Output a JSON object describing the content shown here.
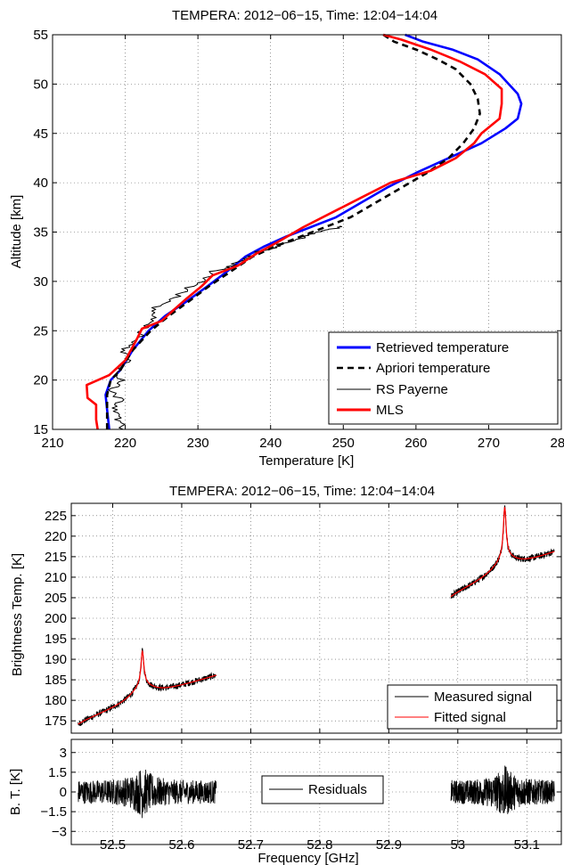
{
  "chart_data": [
    {
      "type": "line",
      "title": "TEMPERA: 2012−06−15, Time: 12:04−14:04",
      "xlabel": "Temperature [K]",
      "ylabel": "Altitude [km]",
      "xlim": [
        210,
        280
      ],
      "ylim": [
        15,
        55
      ],
      "xticks": [
        210,
        220,
        230,
        240,
        250,
        260,
        270,
        280
      ],
      "yticks": [
        15,
        20,
        25,
        30,
        35,
        40,
        45,
        50,
        55
      ],
      "grid": true,
      "legend_position": "bottom-right",
      "series": [
        {
          "name": "Retrieved temperature",
          "color": "#0000ff",
          "style": "solid",
          "points": [
            [
              217.8,
              15
            ],
            [
              217.5,
              17
            ],
            [
              217.3,
              18.5
            ],
            [
              218.0,
              20
            ],
            [
              219.3,
              21
            ],
            [
              221.0,
              23
            ],
            [
              223.2,
              25
            ],
            [
              225.5,
              26.5
            ],
            [
              228.5,
              28
            ],
            [
              231.3,
              29.5
            ],
            [
              234.0,
              31
            ],
            [
              236.5,
              32.5
            ],
            [
              239.0,
              33.5
            ],
            [
              242.0,
              34.5
            ],
            [
              245.5,
              35.5
            ],
            [
              249.0,
              36.5
            ],
            [
              252.5,
              38
            ],
            [
              256.0,
              39.5
            ],
            [
              260.0,
              41
            ],
            [
              264.5,
              42.5
            ],
            [
              269.0,
              44
            ],
            [
              272.3,
              45.5
            ],
            [
              274.0,
              46.5
            ],
            [
              274.5,
              48
            ],
            [
              274.0,
              49
            ],
            [
              271.5,
              51
            ],
            [
              268.5,
              52.5
            ],
            [
              265.0,
              53.5
            ],
            [
              261.0,
              54.3
            ],
            [
              258.5,
              55
            ]
          ]
        },
        {
          "name": "Apriori temperature",
          "color": "#000000",
          "style": "dashed",
          "points": [
            [
              217.5,
              15
            ],
            [
              217.5,
              17
            ],
            [
              217.5,
              18.5
            ],
            [
              218.0,
              20
            ],
            [
              219.3,
              21
            ],
            [
              221.0,
              23
            ],
            [
              223.5,
              25
            ],
            [
              226.0,
              26.5
            ],
            [
              228.8,
              28
            ],
            [
              231.5,
              29.5
            ],
            [
              234.5,
              31
            ],
            [
              237.5,
              32.5
            ],
            [
              240.5,
              33.5
            ],
            [
              244.0,
              34.5
            ],
            [
              247.5,
              35.5
            ],
            [
              251.0,
              36.5
            ],
            [
              254.5,
              38
            ],
            [
              258.0,
              39.5
            ],
            [
              261.5,
              41
            ],
            [
              264.5,
              42.5
            ],
            [
              266.5,
              44
            ],
            [
              268.0,
              45.5
            ],
            [
              268.8,
              47
            ],
            [
              268.5,
              48.5
            ],
            [
              267.5,
              50
            ],
            [
              265.5,
              51.5
            ],
            [
              263.0,
              52.5
            ],
            [
              260.0,
              53.5
            ],
            [
              257.0,
              54.3
            ],
            [
              255.5,
              55
            ]
          ]
        },
        {
          "name": "RS Payerne",
          "color": "#000000",
          "style": "solid-noisy",
          "points": [
            [
              219.5,
              15
            ],
            [
              219.0,
              16
            ],
            [
              218.5,
              17
            ],
            [
              219.3,
              18
            ],
            [
              218.0,
              19
            ],
            [
              219.5,
              20
            ],
            [
              218.8,
              21
            ],
            [
              220.3,
              22
            ],
            [
              219.8,
              23
            ],
            [
              221.5,
              24
            ],
            [
              222.5,
              25
            ],
            [
              224.0,
              26
            ],
            [
              223.5,
              27
            ],
            [
              226.0,
              28
            ],
            [
              228.0,
              29
            ],
            [
              230.5,
              30
            ],
            [
              232.0,
              31
            ],
            [
              234.5,
              31.5
            ],
            [
              236.5,
              32.3
            ],
            [
              238.5,
              33
            ],
            [
              240.5,
              33.5
            ],
            [
              242.5,
              34
            ],
            [
              244.5,
              34.5
            ],
            [
              246.5,
              35
            ],
            [
              248.5,
              35.3
            ],
            [
              249.5,
              35.6
            ]
          ]
        },
        {
          "name": "MLS",
          "color": "#ff0000",
          "style": "solid",
          "points": [
            [
              216.2,
              15
            ],
            [
              216.0,
              16
            ],
            [
              216.0,
              17.5
            ],
            [
              214.8,
              18.2
            ],
            [
              214.7,
              19.5
            ],
            [
              217.8,
              20.5
            ],
            [
              220.0,
              22
            ],
            [
              221.5,
              24
            ],
            [
              222.3,
              25.2
            ],
            [
              225.0,
              26
            ],
            [
              226.5,
              27
            ],
            [
              228.5,
              28.3
            ],
            [
              230.5,
              29.5
            ],
            [
              232.0,
              30.6
            ],
            [
              235.5,
              31.6
            ],
            [
              238.0,
              32.8
            ],
            [
              241.0,
              34
            ],
            [
              244.5,
              35.5
            ],
            [
              248.5,
              37
            ],
            [
              252.5,
              38.5
            ],
            [
              256.5,
              40
            ],
            [
              262.0,
              41.2
            ],
            [
              265.5,
              42.5
            ],
            [
              268.0,
              44
            ],
            [
              269.0,
              45
            ],
            [
              271.5,
              46.5
            ],
            [
              271.8,
              48
            ],
            [
              271.8,
              49.5
            ],
            [
              269.5,
              51
            ],
            [
              266.0,
              52.3
            ],
            [
              262.0,
              53.5
            ],
            [
              258.0,
              54.5
            ],
            [
              255.5,
              55
            ]
          ]
        }
      ]
    },
    {
      "type": "line",
      "title": "TEMPERA: 2012−06−15, Time: 12:04−14:04",
      "xlabel": "",
      "ylabel": "Brightness Temp. [K]",
      "xlim": [
        52.44,
        53.15
      ],
      "ylim": [
        172,
        228
      ],
      "yticks": [
        175,
        180,
        185,
        190,
        195,
        200,
        205,
        210,
        215,
        220,
        225
      ],
      "grid": true,
      "legend_position": "bottom-right",
      "segments": [
        {
          "x0": 52.45,
          "x1": 52.65,
          "base": [
            174,
            186
          ],
          "peak_x": 52.543,
          "peak": 192
        },
        {
          "x0": 52.99,
          "x1": 53.14,
          "base": [
            205,
            216
          ],
          "peak_x": 53.068,
          "peak": 227
        }
      ],
      "series": [
        {
          "name": "Measured signal",
          "color": "#000000"
        },
        {
          "name": "Fitted signal",
          "color": "#ff0000"
        }
      ]
    },
    {
      "type": "line",
      "title": "",
      "xlabel": "Frequency [GHz]",
      "ylabel": "B. T. [K]",
      "xlim": [
        52.44,
        53.15
      ],
      "ylim": [
        -4,
        4
      ],
      "xticks": [
        52.5,
        52.6,
        52.7,
        52.8,
        52.9,
        53,
        53.1
      ],
      "xtick_labels": [
        "52.5",
        "52.6",
        "52.7",
        "52.8",
        "52.9",
        "53",
        "53.1"
      ],
      "yticks": [
        -3,
        -1.5,
        0,
        1.5,
        3
      ],
      "ytick_labels": [
        "−3",
        "−1.5",
        "0",
        "1.5",
        "3"
      ],
      "grid": true,
      "legend_position": "center",
      "residual_amplitude": 0.9,
      "series": [
        {
          "name": "Residuals",
          "color": "#000000"
        }
      ]
    }
  ]
}
